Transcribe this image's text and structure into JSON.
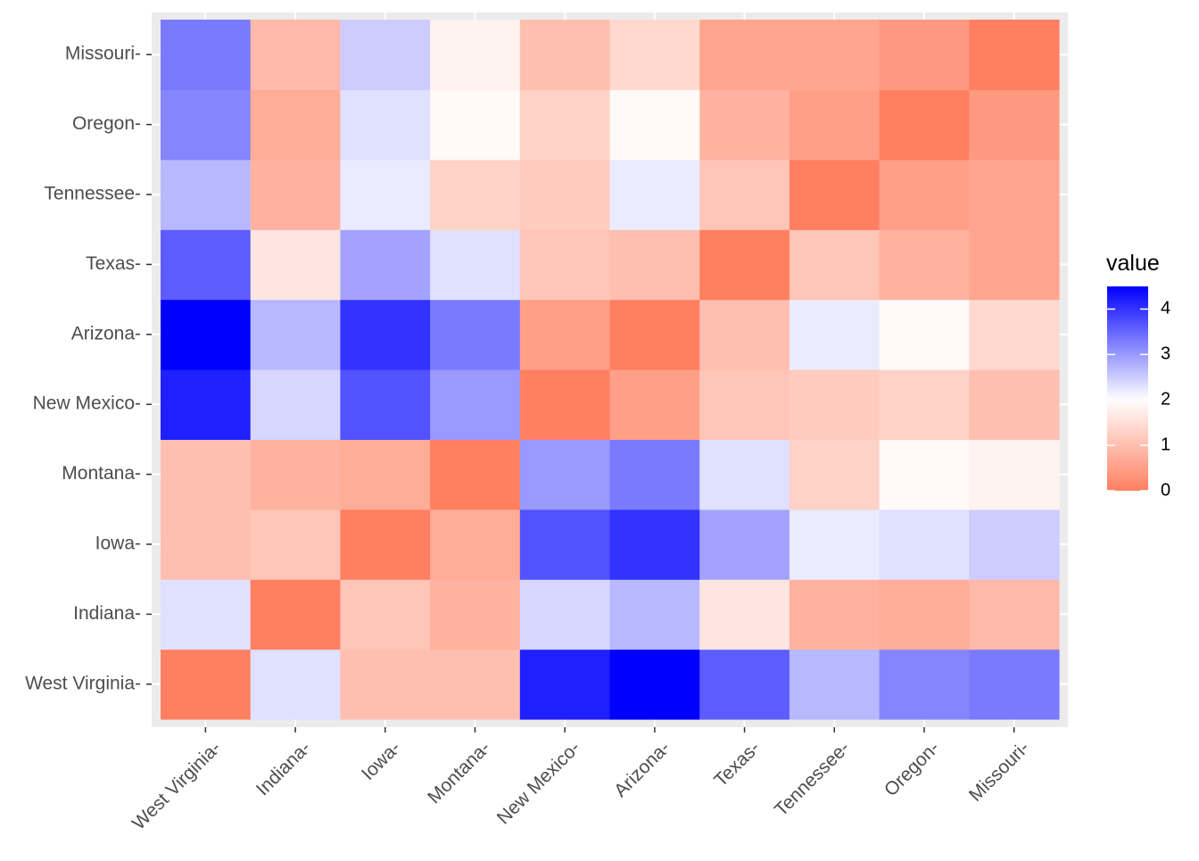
{
  "chart_data": {
    "type": "heatmap",
    "x_categories": [
      "West Virginia",
      "Indiana",
      "Iowa",
      "Montana",
      "New Mexico",
      "Arizona",
      "Texas",
      "Tennessee",
      "Oregon",
      "Missouri"
    ],
    "y_categories": [
      "West Virginia",
      "Indiana",
      "Iowa",
      "Montana",
      "New Mexico",
      "Arizona",
      "Texas",
      "Tennessee",
      "Oregon",
      "Missouri"
    ],
    "values": [
      [
        0.0,
        2.3,
        1.0,
        1.0,
        4.2,
        4.5,
        3.6,
        2.7,
        3.2,
        3.3
      ],
      [
        2.3,
        0.0,
        1.1,
        0.8,
        2.4,
        2.7,
        1.6,
        0.8,
        0.7,
        0.9
      ],
      [
        1.0,
        1.1,
        0.0,
        0.7,
        3.7,
        4.0,
        2.9,
        2.2,
        2.3,
        2.5
      ],
      [
        1.0,
        0.8,
        0.7,
        0.0,
        3.0,
        3.3,
        2.3,
        1.3,
        1.9,
        1.8
      ],
      [
        4.2,
        2.4,
        3.7,
        3.0,
        0.0,
        0.5,
        1.1,
        1.2,
        1.3,
        1.0
      ],
      [
        4.5,
        2.7,
        4.0,
        3.3,
        0.5,
        0.0,
        1.0,
        2.2,
        1.9,
        1.4
      ],
      [
        3.6,
        1.6,
        2.9,
        2.3,
        1.1,
        1.0,
        0.0,
        1.1,
        0.8,
        0.6
      ],
      [
        2.7,
        0.8,
        2.2,
        1.3,
        1.2,
        2.2,
        1.1,
        0.0,
        0.5,
        0.6
      ],
      [
        3.2,
        0.7,
        2.3,
        1.9,
        1.3,
        1.9,
        0.8,
        0.5,
        0.0,
        0.4
      ],
      [
        3.3,
        0.9,
        2.5,
        1.8,
        1.0,
        1.4,
        0.6,
        0.6,
        0.4,
        0.0
      ]
    ],
    "color_scale": {
      "low": "#ff7f60",
      "mid": "#ffffff",
      "high": "#0000ff",
      "midpoint": 2,
      "limits": [
        0,
        4.5
      ]
    },
    "legend": {
      "title": "value",
      "breaks": [
        0,
        1,
        2,
        3,
        4
      ],
      "labels": [
        "0",
        "1",
        "2",
        "3",
        "4"
      ],
      "position": "right"
    },
    "x_tick_labels": [
      "West Virginia-",
      "Indiana-",
      "Iowa-",
      "Montana-",
      "New Mexico-",
      "Arizona-",
      "Texas-",
      "Tennessee-",
      "Oregon-",
      "Missouri-"
    ],
    "y_tick_labels": [
      "West Virginia-",
      "Indiana-",
      "Iowa-",
      "Montana-",
      "New Mexico-",
      "Arizona-",
      "Texas-",
      "Tennessee-",
      "Oregon-",
      "Missouri-"
    ],
    "panel_background": "#ebebeb",
    "grid": true
  }
}
